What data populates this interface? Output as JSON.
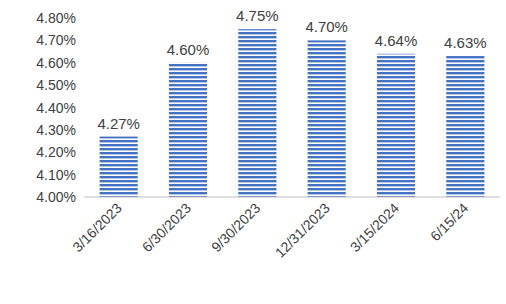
{
  "chart_data": {
    "type": "bar",
    "categories": [
      "3/16/2023",
      "6/30/2023",
      "9/30/2023",
      "12/31/2023",
      "3/15/2024",
      "6/15/24"
    ],
    "values": [
      4.27,
      4.6,
      4.75,
      4.7,
      4.64,
      4.63
    ],
    "value_labels": [
      "4.27%",
      "4.60%",
      "4.75%",
      "4.70%",
      "4.64%",
      "4.63%"
    ],
    "color": "#4472c4",
    "ylim": [
      4.0,
      4.8
    ],
    "yticks": [
      {
        "value": 4.0,
        "label": "4.00%"
      },
      {
        "value": 4.1,
        "label": "4.10%"
      },
      {
        "value": 4.2,
        "label": "4.20%"
      },
      {
        "value": 4.3,
        "label": "4.30%"
      },
      {
        "value": 4.4,
        "label": "4.40%"
      },
      {
        "value": 4.5,
        "label": "4.50%"
      },
      {
        "value": 4.6,
        "label": "4.60%"
      },
      {
        "value": 4.7,
        "label": "4.70%"
      },
      {
        "value": 4.8,
        "label": "4.80%"
      }
    ],
    "grid": false,
    "data_labels": true
  }
}
